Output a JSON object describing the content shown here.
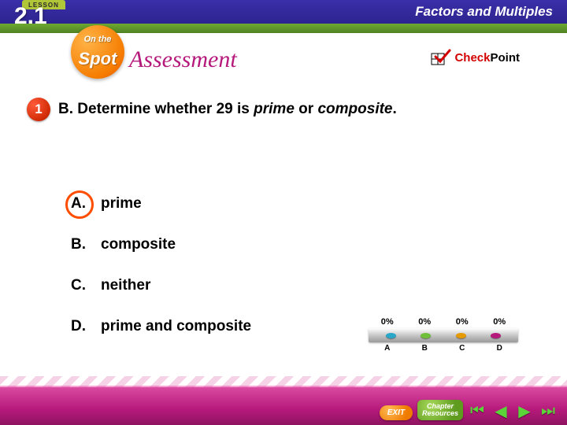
{
  "header": {
    "lesson_label": "LESSON",
    "lesson_number": "2.1",
    "topic": "Factors and Multiples"
  },
  "spot": {
    "line1": "On the",
    "line2": "Spot",
    "assessment": "Assessment"
  },
  "checkpoint": {
    "red": "Check",
    "black": "Point"
  },
  "question": {
    "number": "1",
    "prefix": "B. Determine whether 29 is ",
    "em1": "prime",
    "mid": " or ",
    "em2": "composite",
    "suffix": "."
  },
  "choices": [
    {
      "letter": "A.",
      "text": "prime",
      "correct": true
    },
    {
      "letter": "B.",
      "text": "composite",
      "correct": false
    },
    {
      "letter": "C.",
      "text": "neither",
      "correct": false
    },
    {
      "letter": "D.",
      "text": "prime and composite",
      "correct": false
    }
  ],
  "poll": {
    "percents": [
      "0%",
      "0%",
      "0%",
      "0%"
    ],
    "labels": [
      "A",
      "B",
      "C",
      "D"
    ],
    "dot_colors": [
      "#2aa6c9",
      "#6fbf3a",
      "#e59a00",
      "#b5197b"
    ]
  },
  "nav": {
    "exit": "EXIT",
    "resources_l1": "Chapter",
    "resources_l2": "Resources"
  },
  "colors": {
    "header_bg": "#2d2490",
    "subbar_bg": "#5e9b1f",
    "accent_magenta": "#b5197b",
    "correct_ring": "#ff4d00"
  }
}
